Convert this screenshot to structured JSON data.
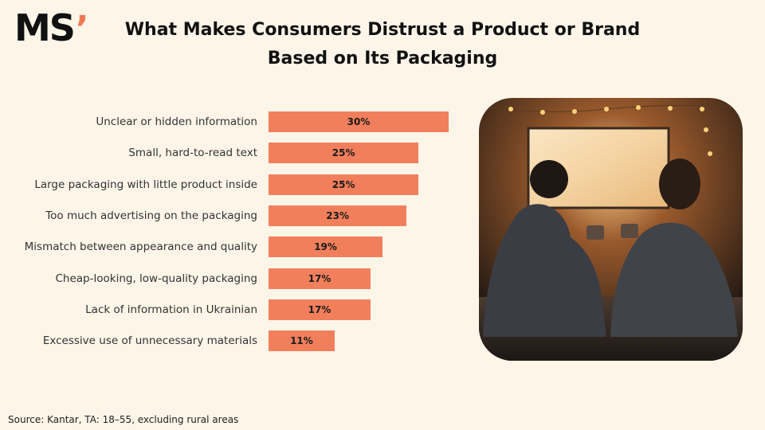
{
  "logo": {
    "text": "MS",
    "mark": "’"
  },
  "chart_data": {
    "type": "bar",
    "orientation": "horizontal",
    "title": "What Makes Consumers Distrust a Product or Brand Based on Its Packaging",
    "categories": [
      "Unclear or hidden information",
      "Small, hard-to-read text",
      "Large packaging with little product inside",
      "Too much advertising on the packaging",
      "Mismatch between appearance and quality",
      "Cheap-looking, low-quality packaging",
      "Lack of information in Ukrainian",
      "Excessive use of unnecessary materials"
    ],
    "values": [
      30,
      25,
      25,
      23,
      19,
      17,
      17,
      11
    ],
    "value_labels": [
      "30%",
      "25%",
      "25%",
      "23%",
      "19%",
      "17%",
      "17%",
      "11%"
    ],
    "color": "#f27f5c",
    "source": "Source: Kantar, TA: 18–55, excluding rural areas"
  }
}
